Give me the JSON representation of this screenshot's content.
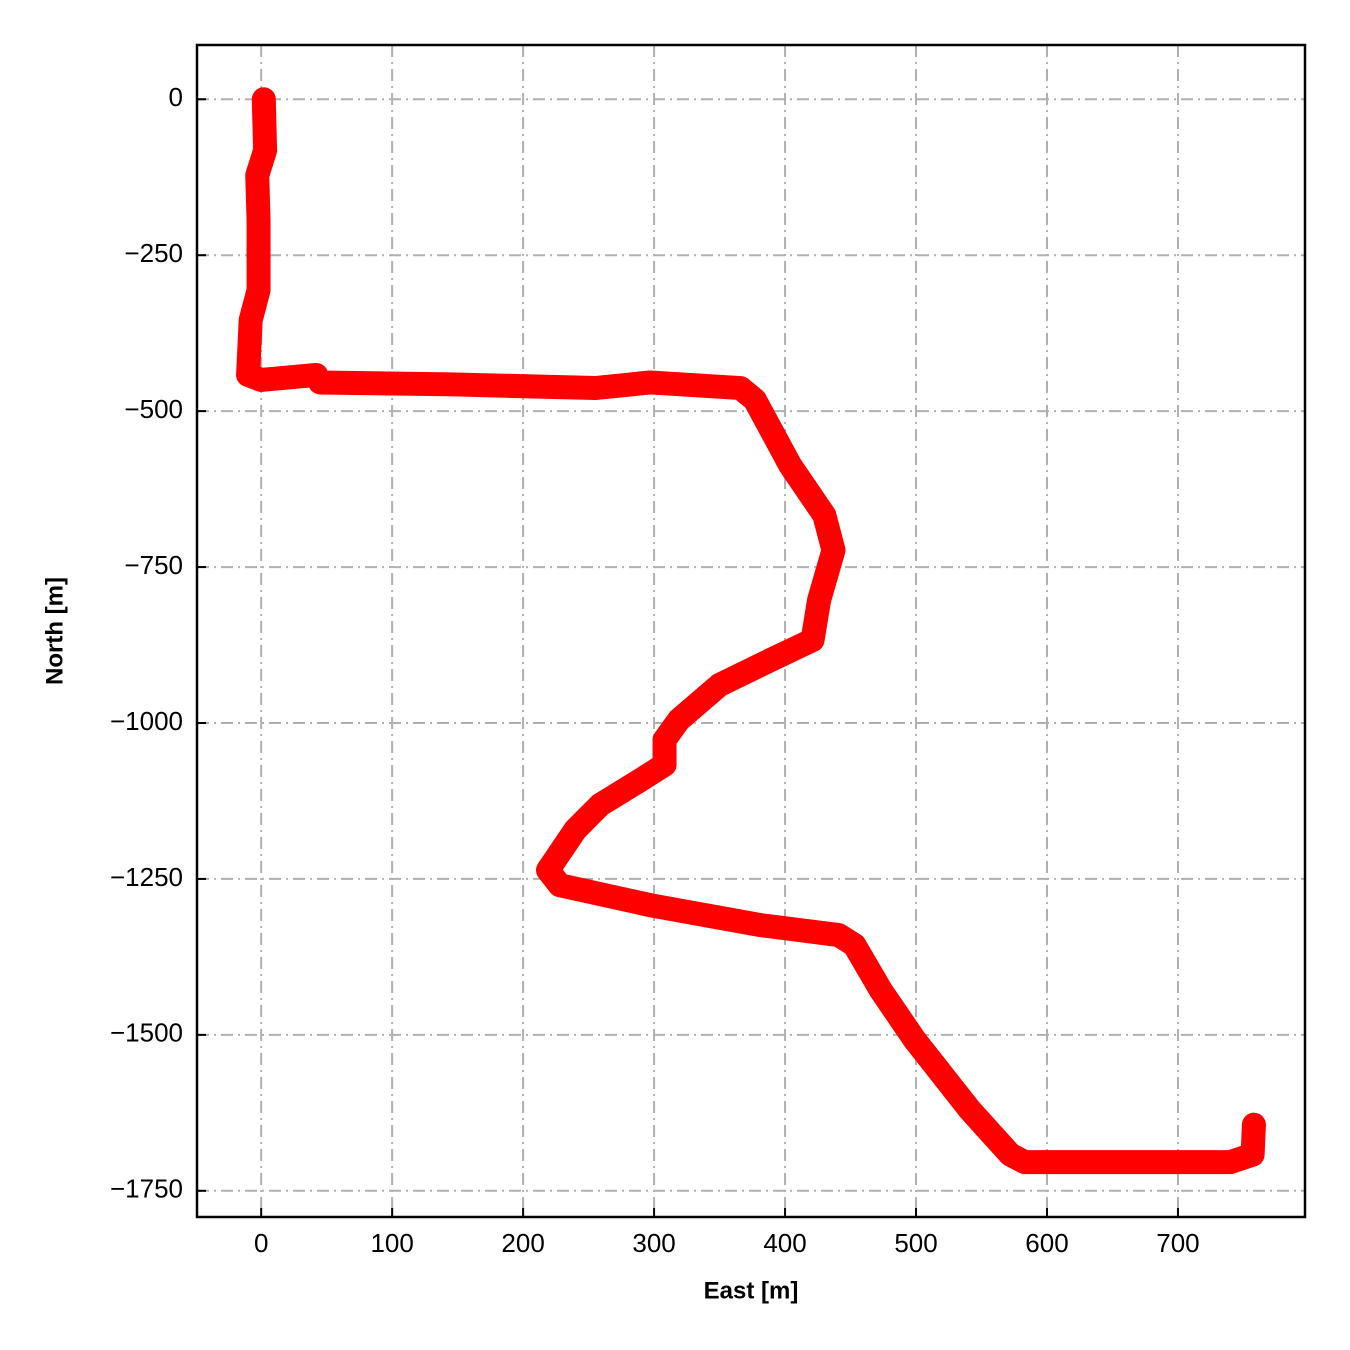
{
  "chart_data": {
    "type": "line",
    "x_label": "East [m]",
    "y_label": "North [m]",
    "series": [
      {
        "color": "#ff0000",
        "x": [
          2,
          3,
          -3,
          -2,
          -2,
          -8,
          -10,
          0,
          42,
          45,
          144,
          255,
          297,
          366,
          377,
          404,
          430,
          437,
          426,
          421,
          389,
          350,
          319,
          308,
          308,
          290,
          259,
          240,
          219,
          228,
          297,
          381,
          441,
          453,
          473,
          499,
          541,
          572,
          583,
          740,
          757,
          758
        ],
        "values": [
          0,
          -82,
          -122,
          -194,
          -306,
          -354,
          -442,
          -450,
          -442,
          -454,
          -457,
          -463,
          -454,
          -463,
          -482,
          -587,
          -667,
          -723,
          -803,
          -867,
          -899,
          -939,
          -995,
          -1027,
          -1067,
          -1091,
          -1131,
          -1171,
          -1236,
          -1260,
          -1292,
          -1324,
          -1340,
          -1356,
          -1428,
          -1508,
          -1620,
          -1692,
          -1704,
          -1704,
          -1692,
          -1644
        ]
      }
    ],
    "xlim": [
      -49,
      797
    ],
    "ylim": [
      -1792,
      87
    ],
    "xticks": [
      0,
      100,
      200,
      300,
      400,
      500,
      600,
      700
    ],
    "yticks": [
      0,
      {
        "value": -250,
        "label": "−250"
      },
      {
        "value": -500,
        "label": "−500"
      },
      {
        "value": -750,
        "label": "−750"
      },
      {
        "value": -1000,
        "label": "−1000"
      },
      {
        "value": -1250,
        "label": "−1250"
      },
      {
        "value": -1500,
        "label": "−1500"
      },
      {
        "value": -1750,
        "label": "−1750"
      }
    ],
    "grid": true
  }
}
